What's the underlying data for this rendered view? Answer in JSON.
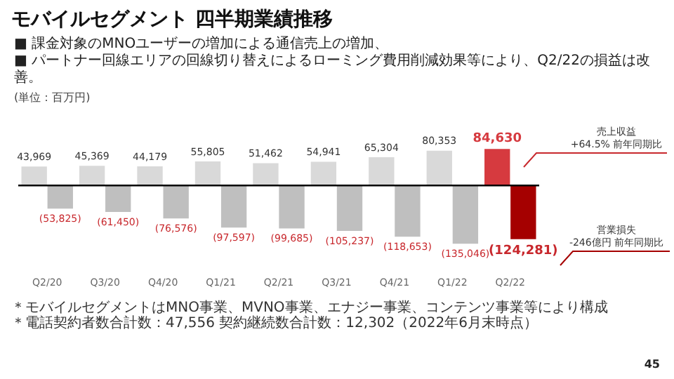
{
  "chart_data": {
    "type": "bar",
    "title": "モバイルセグメント 四半期業績推移",
    "subtitle": "■ 課金対象のMNOユーザーの増加による通信売上の増加、\n■ パートナー回線エリアの回線切り替えによるローミング費用削減効果等により、Q2/22の損益は改善。",
    "categories": [
      "Q2/20",
      "Q3/20",
      "Q4/20",
      "Q1/21",
      "Q2/21",
      "Q3/21",
      "Q4/21",
      "Q1/22",
      "Q2/22"
    ],
    "series": [
      {
        "colors": [
          "#d9d9d9",
          "#d9d9d9",
          "#d9d9d9",
          "#d9d9d9",
          "#d9d9d9",
          "#d9d9d9",
          "#d9d9d9",
          "#d9d9d9",
          "#d63a3f"
        ],
        "values": [
          43969,
          45369,
          44179,
          55805,
          51462,
          54941,
          65304,
          80353,
          84630
        ],
        "value_labels": [
          "43,969",
          "45,369",
          "44,179",
          "55,805",
          "51,462",
          "54,941",
          "65,304",
          "80,353",
          "84,630"
        ]
      },
      {
        "colors": [
          "#bfbfbf",
          "#bfbfbf",
          "#bfbfbf",
          "#bfbfbf",
          "#bfbfbf",
          "#bfbfbf",
          "#bfbfbf",
          "#bfbfbf",
          "#a50000"
        ],
        "values": [
          -53825,
          -61450,
          -76576,
          -97597,
          -99685,
          -105237,
          -118653,
          -135046,
          -124281
        ],
        "value_labels": [
          "(53,825)",
          "(61,450)",
          "(76,576)",
          "(97,597)",
          "(99,685)",
          "(105,237)",
          "(118,653)",
          "(135,046)",
          "(124,281)"
        ]
      }
    ],
    "annotations": [
      "(単位：百万円)",
      "売上収益\n+64.5% 前年同期比",
      "営業損失\n-246億円 前年同期比",
      "＊モバイルセグメントはMNO事業、MVNO事業、エナジー事業、コンテンツ事業等により構成",
      "＊電話契約者数合計数：47,556 契約継続数合計数：12,302（2022年6月末時点）",
      "45"
    ],
    "grid": false,
    "legend": false
  }
}
